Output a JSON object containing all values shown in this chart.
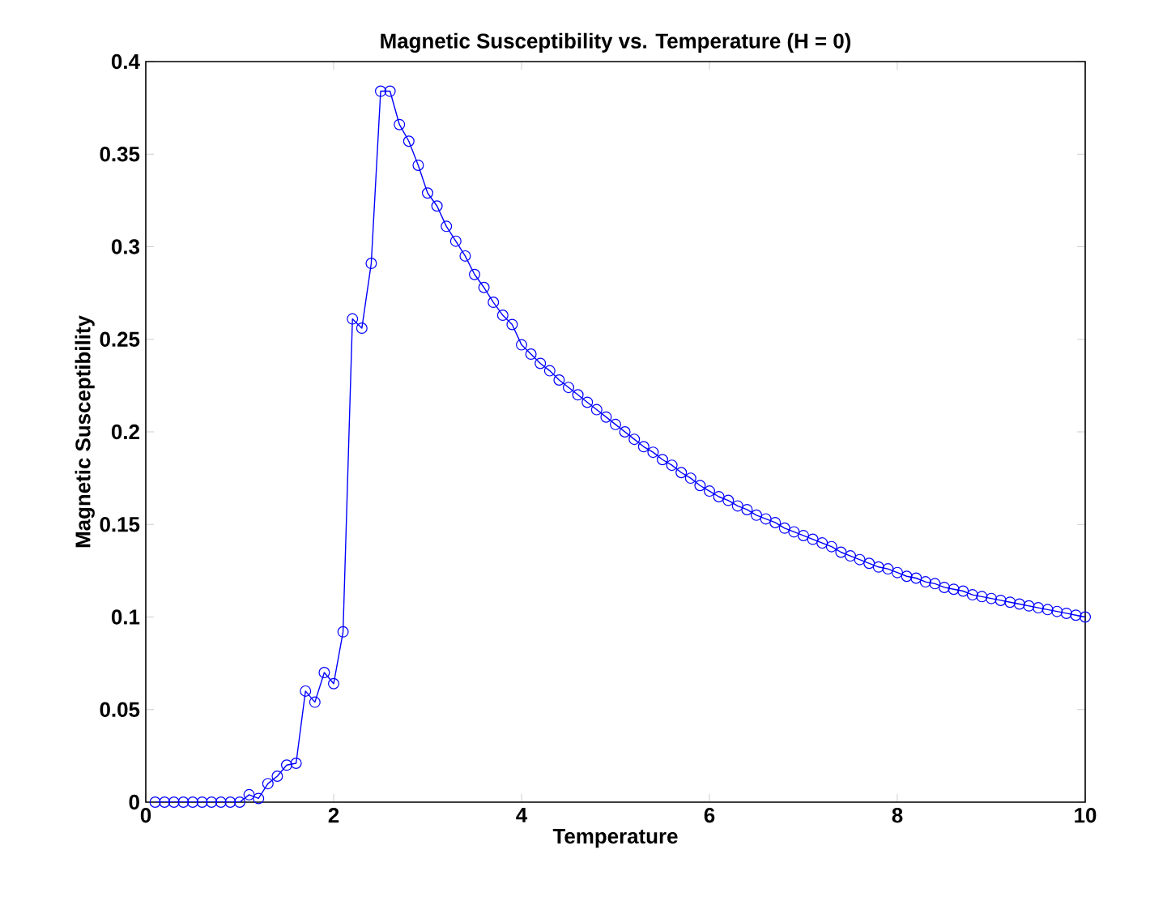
{
  "chart_data": {
    "type": "line",
    "title": "Magnetic Susceptibility vs. Temperature (H = 0)",
    "xlabel": "Temperature",
    "ylabel": "Magnetic Susceptibility",
    "xlim": [
      0,
      10
    ],
    "ylim": [
      0,
      0.4
    ],
    "xticks": [
      0,
      2,
      4,
      6,
      8,
      10
    ],
    "yticks": [
      0,
      0.05,
      0.1,
      0.15,
      0.2,
      0.25,
      0.3,
      0.35,
      0.4
    ],
    "marker": "circle",
    "line_style": "solid",
    "series": [
      {
        "color": "#0000ff",
        "x": [
          0.1,
          0.2,
          0.3,
          0.4,
          0.5,
          0.6,
          0.7,
          0.8,
          0.9,
          1.0,
          1.1,
          1.2,
          1.3,
          1.4,
          1.5,
          1.6,
          1.7,
          1.8,
          1.9,
          2.0,
          2.1,
          2.2,
          2.3,
          2.4,
          2.5,
          2.6,
          2.7,
          2.8,
          2.9,
          3.0,
          3.1,
          3.2,
          3.3,
          3.4,
          3.5,
          3.6,
          3.7,
          3.8,
          3.9,
          4.0,
          4.1,
          4.2,
          4.3,
          4.4,
          4.5,
          4.6,
          4.7,
          4.8,
          4.9,
          5.0,
          5.1,
          5.2,
          5.3,
          5.4,
          5.5,
          5.6,
          5.7,
          5.8,
          5.9,
          6.0,
          6.1,
          6.2,
          6.3,
          6.4,
          6.5,
          6.6,
          6.7,
          6.8,
          6.9,
          7.0,
          7.1,
          7.2,
          7.3,
          7.4,
          7.5,
          7.6,
          7.7,
          7.8,
          7.9,
          8.0,
          8.1,
          8.2,
          8.3,
          8.4,
          8.5,
          8.6,
          8.7,
          8.8,
          8.9,
          9.0,
          9.1,
          9.2,
          9.3,
          9.4,
          9.5,
          9.6,
          9.7,
          9.8,
          9.9,
          10.0
        ],
        "values": [
          0,
          0,
          0,
          0,
          0,
          0,
          0,
          0,
          0,
          0,
          0.004,
          0.002,
          0.01,
          0.014,
          0.02,
          0.021,
          0.06,
          0.054,
          0.07,
          0.064,
          0.092,
          0.261,
          0.256,
          0.291,
          0.384,
          0.384,
          0.366,
          0.357,
          0.344,
          0.329,
          0.322,
          0.311,
          0.303,
          0.295,
          0.285,
          0.278,
          0.27,
          0.263,
          0.258,
          0.247,
          0.242,
          0.237,
          0.233,
          0.228,
          0.224,
          0.22,
          0.216,
          0.212,
          0.208,
          0.204,
          0.2,
          0.196,
          0.192,
          0.189,
          0.185,
          0.182,
          0.178,
          0.175,
          0.171,
          0.168,
          0.165,
          0.163,
          0.16,
          0.158,
          0.155,
          0.153,
          0.151,
          0.148,
          0.146,
          0.144,
          0.142,
          0.14,
          0.138,
          0.135,
          0.133,
          0.131,
          0.129,
          0.127,
          0.126,
          0.124,
          0.122,
          0.121,
          0.119,
          0.118,
          0.116,
          0.115,
          0.114,
          0.112,
          0.111,
          0.11,
          0.109,
          0.108,
          0.107,
          0.106,
          0.105,
          0.104,
          0.103,
          0.102,
          0.101,
          0.1
        ]
      }
    ]
  }
}
